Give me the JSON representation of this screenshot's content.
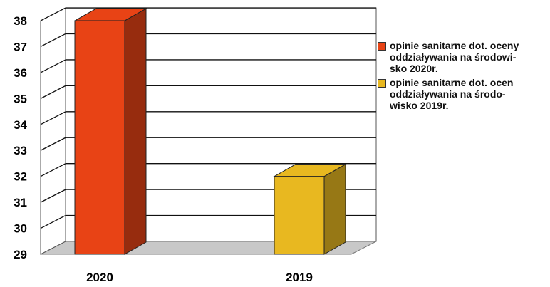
{
  "chart_data": {
    "type": "bar",
    "categories": [
      "2020",
      "2019"
    ],
    "series": [
      {
        "name": "opinie sanitarne dot. oceny oddziaływania na środowi-sko 2020r.",
        "values": [
          38,
          null
        ],
        "color": "#e84315"
      },
      {
        "name": "opinie sanitarne dot. ocen oddziaływania na środo-wisko 2019r.",
        "values": [
          null,
          32
        ],
        "color": "#e8b820"
      }
    ],
    "ylim": [
      29,
      38
    ],
    "yticks": [
      "29",
      "30",
      "31",
      "32",
      "33",
      "34",
      "35",
      "36",
      "37",
      "38"
    ],
    "grid": true,
    "legend_position": "right",
    "three_d": true
  },
  "legend": {
    "items": [
      {
        "lines": [
          "opinie sanitarne dot. oceny",
          "oddziaływania na środowi-",
          "sko 2020r."
        ],
        "color": "#e84315"
      },
      {
        "lines": [
          "opinie sanitarne dot. ocen",
          "oddziaływania na środo-",
          "wisko 2019r."
        ],
        "color": "#e8b820"
      }
    ]
  }
}
